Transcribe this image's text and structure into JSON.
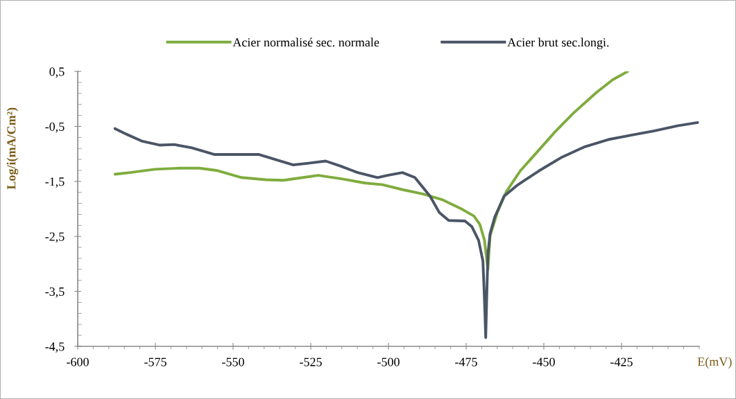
{
  "chart_data": {
    "type": "line",
    "xlabel": "E(mV)",
    "ylabel": "Log/i(mA/Cm²)",
    "xlim": [
      -600,
      -400
    ],
    "ylim": [
      -4.5,
      0.5
    ],
    "xticks": [
      -600,
      {
        "value": -595,
        "label": null
      },
      {
        "value": -590,
        "label": null
      },
      {
        "value": -585,
        "label": null
      },
      {
        "value": -580,
        "label": null
      },
      -575,
      {
        "value": -570,
        "label": null
      },
      {
        "value": -565,
        "label": null
      },
      {
        "value": -560,
        "label": null
      },
      {
        "value": -555,
        "label": null
      },
      -550,
      {
        "value": -545,
        "label": null
      },
      {
        "value": -540,
        "label": null
      },
      {
        "value": -535,
        "label": null
      },
      {
        "value": -530,
        "label": null
      },
      -525,
      {
        "value": -520,
        "label": null
      },
      {
        "value": -515,
        "label": null
      },
      {
        "value": -510,
        "label": null
      },
      {
        "value": -505,
        "label": null
      },
      -500,
      {
        "value": -495,
        "label": null
      },
      {
        "value": -490,
        "label": null
      },
      {
        "value": -485,
        "label": null
      },
      {
        "value": -480,
        "label": null
      },
      -475,
      {
        "value": -470,
        "label": null
      },
      {
        "value": -465,
        "label": null
      },
      {
        "value": -460,
        "label": null
      },
      {
        "value": -455,
        "label": null
      },
      -450,
      {
        "value": -445,
        "label": null
      },
      {
        "value": -440,
        "label": null
      },
      {
        "value": -435,
        "label": null
      },
      {
        "value": -430,
        "label": null
      },
      -425,
      {
        "value": -420,
        "label": null
      },
      {
        "value": -415,
        "label": null
      },
      {
        "value": -410,
        "label": null
      },
      {
        "value": -405,
        "label": null
      },
      {
        "value": -400,
        "label": null
      }
    ],
    "yticks": [
      {
        "value": -4.5,
        "label": "-4,5"
      },
      {
        "value": -4.3,
        "label": null
      },
      {
        "value": -4.1,
        "label": null
      },
      {
        "value": -3.9,
        "label": null
      },
      {
        "value": -3.7,
        "label": null
      },
      {
        "value": -3.5,
        "label": "-3,5"
      },
      {
        "value": -3.3,
        "label": null
      },
      {
        "value": -3.1,
        "label": null
      },
      {
        "value": -2.9,
        "label": null
      },
      {
        "value": -2.7,
        "label": null
      },
      {
        "value": -2.5,
        "label": "-2,5"
      },
      {
        "value": -2.3,
        "label": null
      },
      {
        "value": -2.1,
        "label": null
      },
      {
        "value": -1.9,
        "label": null
      },
      {
        "value": -1.7,
        "label": null
      },
      {
        "value": -1.5,
        "label": "-1,5"
      },
      {
        "value": -1.3,
        "label": null
      },
      {
        "value": -1.1,
        "label": null
      },
      {
        "value": -0.9,
        "label": null
      },
      {
        "value": -0.7,
        "label": null
      },
      {
        "value": -0.5,
        "label": "-0,5"
      },
      {
        "value": -0.3,
        "label": null
      },
      {
        "value": -0.1,
        "label": null
      },
      {
        "value": 0.1,
        "label": null
      },
      {
        "value": 0.3,
        "label": null
      },
      {
        "value": 0.5,
        "label": "0,5"
      }
    ],
    "grid": false,
    "legend": "top",
    "series": [
      {
        "name": "Acier normalisé sec. normale",
        "color": "#7fac3e",
        "x": [
          -588.0,
          -583.2,
          -575.2,
          -567.3,
          -560.9,
          -555.4,
          -547.3,
          -539.4,
          -533.8,
          -527.5,
          -522.6,
          -515.5,
          -507.5,
          -501.9,
          -495.5,
          -488.8,
          -482.8,
          -476.2,
          -472.5,
          -470.6,
          -469.1,
          -468.4,
          -468.0,
          -467.3,
          -465.0,
          -462.1,
          -457.6,
          -451.6,
          -446.4,
          -440.5,
          -433.0,
          -427.8,
          -423.0
        ],
        "values": [
          -1.37,
          -1.34,
          -1.28,
          -1.26,
          -1.26,
          -1.3,
          -1.43,
          -1.47,
          -1.48,
          -1.43,
          -1.39,
          -1.45,
          -1.53,
          -1.56,
          -1.65,
          -1.73,
          -1.83,
          -2.01,
          -2.13,
          -2.28,
          -2.57,
          -2.91,
          -3.1,
          -2.49,
          -2.07,
          -1.69,
          -1.31,
          -0.93,
          -0.6,
          -0.26,
          0.12,
          0.35,
          0.5
        ]
      },
      {
        "name": "Acier brut sec.longi.",
        "color": "#4a5566",
        "x": [
          -588.0,
          -584.0,
          -579.2,
          -573.7,
          -568.9,
          -563.3,
          -556.1,
          -549.8,
          -541.8,
          -535.4,
          -530.6,
          -525.8,
          -520.2,
          -515.5,
          -509.9,
          -503.5,
          -500.3,
          -495.5,
          -491.5,
          -486.6,
          -483.6,
          -480.6,
          -475.4,
          -473.2,
          -471.0,
          -469.6,
          -469.2,
          -468.9,
          -468.7,
          -468.4,
          -468.0,
          -467.3,
          -465.8,
          -462.8,
          -458.3,
          -451.6,
          -444.2,
          -436.8,
          -429.3,
          -421.9,
          -414.4,
          -407.0,
          -400.5
        ],
        "values": [
          -0.54,
          -0.65,
          -0.77,
          -0.84,
          -0.83,
          -0.89,
          -1.01,
          -1.01,
          -1.01,
          -1.12,
          -1.2,
          -1.17,
          -1.13,
          -1.22,
          -1.34,
          -1.43,
          -1.39,
          -1.34,
          -1.43,
          -1.77,
          -2.07,
          -2.21,
          -2.22,
          -2.32,
          -2.57,
          -2.95,
          -3.5,
          -4.0,
          -4.34,
          -3.66,
          -2.83,
          -2.45,
          -2.15,
          -1.77,
          -1.56,
          -1.31,
          -1.06,
          -0.87,
          -0.74,
          -0.66,
          -0.58,
          -0.49,
          -0.43
        ]
      }
    ]
  }
}
